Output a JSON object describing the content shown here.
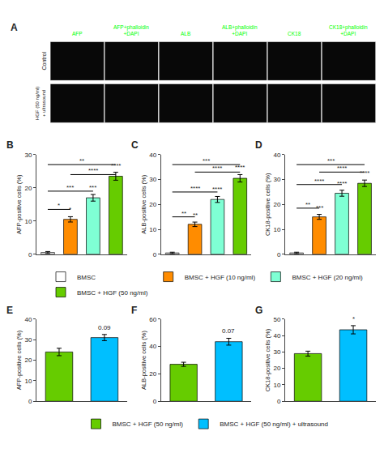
{
  "chart_data": [
    {
      "type": "image_grid",
      "title": "A",
      "categories": [
        "AFP",
        "AFP+phalloidin\n+DAPI",
        "ALB",
        "ALB+phalloidin\n+DAPI",
        "CK18",
        "CK18+phalloidin\n+DAPI"
      ],
      "rows": [
        "Control",
        "HGF (50 ng/ml)\n+ ultrasound"
      ],
      "color": "#00FF00"
    },
    {
      "type": "bar",
      "title": "B",
      "ylabel": "AFP-positive cells (%)",
      "categories": [
        "BMSC",
        "BMSC + HGF (10 ng/ml)",
        "BMSC + HGF (20 ng/ml)",
        "BMSC + HGF (50 ng/ml)"
      ],
      "values": [
        0.5,
        10.5,
        17.0,
        23.5
      ],
      "errors": [
        0.3,
        0.8,
        1.0,
        1.2
      ],
      "colors": [
        "#FFFFFF",
        "#FF8C00",
        "#7FFFD4",
        "#66CC00"
      ],
      "ylim": [
        0,
        30
      ],
      "yticks": [
        0,
        10,
        20,
        30
      ],
      "grid": false,
      "tick_labels": "y",
      "legend": "bottom",
      "annotations": [
        {
          "text": "**",
          "from": "BMSC",
          "to": "BMSC + HGF (50 ng/ml)",
          "y": 27
        },
        {
          "text": "****",
          "from": "BMSC + HGF (10 ng/ml)",
          "to": "BMSC + HGF (50 ng/ml)",
          "y": 24
        },
        {
          "text": "*",
          "from": "BMSC",
          "to": "BMSC + HGF (10 ng/ml)",
          "y": 13.5
        },
        {
          "text": "***",
          "from": "BMSC",
          "to": "BMSC + HGF (20 ng/ml)",
          "y": 19
        },
        {
          "text": "*",
          "category": "BMSC + HGF (10 ng/ml)"
        },
        {
          "text": "***",
          "category": "BMSC + HGF (20 ng/ml)"
        },
        {
          "text": "****",
          "category": "BMSC + HGF (50 ng/ml)"
        }
      ]
    },
    {
      "type": "bar",
      "title": "C",
      "ylabel": "ALB-positive cells (%)",
      "categories": [
        "BMSC",
        "BMSC + HGF (10 ng/ml)",
        "BMSC + HGF (20 ng/ml)",
        "BMSC + HGF (50 ng/ml)"
      ],
      "values": [
        0.5,
        12.0,
        22.0,
        30.5
      ],
      "errors": [
        0.3,
        0.9,
        1.2,
        1.5
      ],
      "colors": [
        "#FFFFFF",
        "#FF8C00",
        "#7FFFD4",
        "#66CC00"
      ],
      "ylim": [
        0,
        40
      ],
      "yticks": [
        0,
        10,
        20,
        30,
        40
      ],
      "grid": false,
      "tick_labels": "y",
      "annotations": [
        {
          "text": "***",
          "from": "BMSC",
          "to": "BMSC + HGF (50 ng/ml)",
          "y": 36
        },
        {
          "text": "****",
          "from": "BMSC + HGF (10 ng/ml)",
          "to": "BMSC + HGF (50 ng/ml)",
          "y": 33
        },
        {
          "text": "**",
          "from": "BMSC",
          "to": "BMSC + HGF (10 ng/ml)",
          "y": 15
        },
        {
          "text": "****",
          "from": "BMSC",
          "to": "BMSC + HGF (20 ng/ml)",
          "y": 25
        },
        {
          "text": "**",
          "category": "BMSC + HGF (10 ng/ml)"
        },
        {
          "text": "****",
          "category": "BMSC + HGF (20 ng/ml)"
        },
        {
          "text": "****",
          "category": "BMSC + HGF (50 ng/ml)"
        }
      ]
    },
    {
      "type": "bar",
      "title": "D",
      "ylabel": "CK18-positive cells (%)",
      "categories": [
        "BMSC",
        "BMSC + HGF (10 ng/ml)",
        "BMSC + HGF (20 ng/ml)",
        "BMSC + HGF (50 ng/ml)"
      ],
      "values": [
        0.5,
        15.0,
        24.5,
        28.5
      ],
      "errors": [
        0.3,
        1.0,
        1.2,
        1.3
      ],
      "colors": [
        "#FFFFFF",
        "#FF8C00",
        "#7FFFD4",
        "#66CC00"
      ],
      "ylim": [
        0,
        40
      ],
      "yticks": [
        0,
        10,
        20,
        30,
        40
      ],
      "grid": false,
      "tick_labels": "y",
      "annotations": [
        {
          "text": "***",
          "from": "BMSC",
          "to": "BMSC + HGF (50 ng/ml)",
          "y": 36
        },
        {
          "text": "****",
          "from": "BMSC + HGF (10 ng/ml)",
          "to": "BMSC + HGF (50 ng/ml)",
          "y": 33
        },
        {
          "text": "**",
          "from": "BMSC",
          "to": "BMSC + HGF (10 ng/ml)",
          "y": 18.5
        },
        {
          "text": "****",
          "from": "BMSC",
          "to": "BMSC + HGF (20 ng/ml)",
          "y": 28
        },
        {
          "text": "***",
          "category": "BMSC + HGF (10 ng/ml)"
        },
        {
          "text": "****",
          "category": "BMSC + HGF (20 ng/ml)"
        },
        {
          "text": "****",
          "category": "BMSC + HGF (50 ng/ml)"
        }
      ]
    },
    {
      "type": "bar",
      "title": "E",
      "ylabel": "AFP-positive cells (%)",
      "categories": [
        "BMSC + HGF (50 ng/ml)",
        "BMSC + HGF (50 ng/ml) + ultrasound"
      ],
      "values": [
        24.0,
        31.0
      ],
      "errors": [
        1.8,
        1.5
      ],
      "colors": [
        "#66CC00",
        "#00BFFF"
      ],
      "ylim": [
        0,
        40
      ],
      "yticks": [
        0,
        10,
        20,
        30,
        40
      ],
      "grid": false,
      "tick_labels": "y",
      "legend": "bottom",
      "annotations": [
        {
          "text": "0.09",
          "category": "BMSC + HGF (50 ng/ml) + ultrasound"
        }
      ]
    },
    {
      "type": "bar",
      "title": "F",
      "ylabel": "ALB-positive cells (%)",
      "categories": [
        "BMSC + HGF (50 ng/ml)",
        "BMSC + HGF (50 ng/ml) + ultrasound"
      ],
      "values": [
        27.0,
        43.5
      ],
      "errors": [
        1.5,
        2.5
      ],
      "colors": [
        "#66CC00",
        "#00BFFF"
      ],
      "ylim": [
        0,
        60
      ],
      "yticks": [
        0,
        20,
        40,
        60
      ],
      "grid": false,
      "tick_labels": "y",
      "annotations": [
        {
          "text": "0.07",
          "category": "BMSC + HGF (50 ng/ml) + ultrasound"
        }
      ]
    },
    {
      "type": "bar",
      "title": "G",
      "ylabel": "CK18-positive cells (%)",
      "categories": [
        "BMSC + HGF (50 ng/ml)",
        "BMSC + HGF (50 ng/ml) + ultrasound"
      ],
      "values": [
        29.0,
        43.5
      ],
      "errors": [
        1.5,
        2.5
      ],
      "colors": [
        "#66CC00",
        "#00BFFF"
      ],
      "ylim": [
        0,
        50
      ],
      "yticks": [
        0,
        10,
        20,
        30,
        40,
        50
      ],
      "grid": false,
      "tick_labels": "y",
      "annotations": [
        {
          "text": "*",
          "category": "BMSC + HGF (50 ng/ml) + ultrasound"
        }
      ]
    }
  ]
}
